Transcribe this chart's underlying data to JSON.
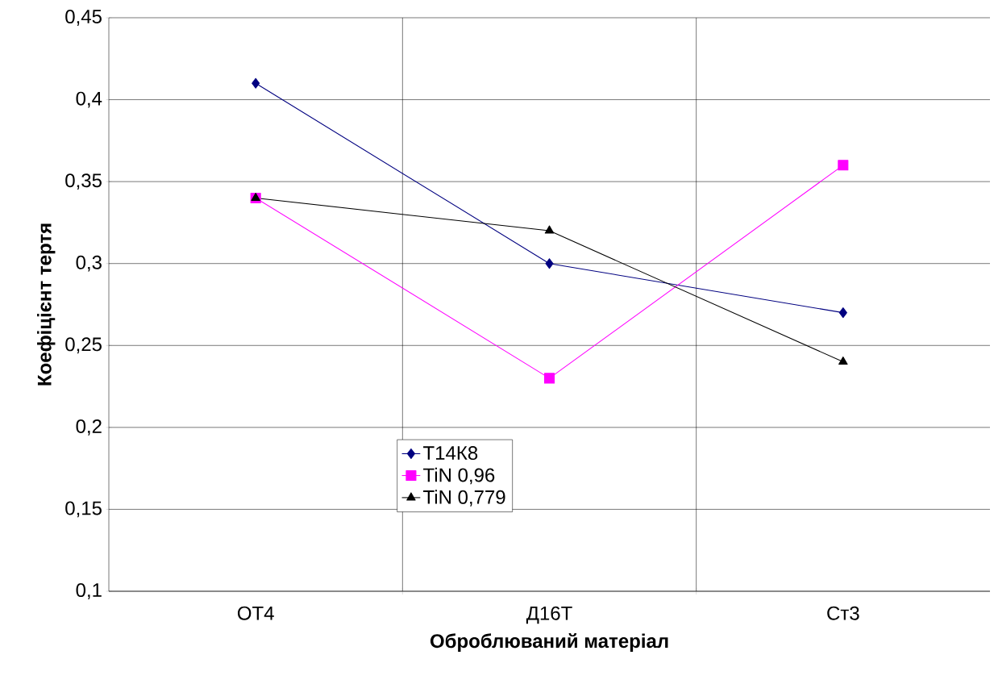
{
  "chart_data": {
    "type": "line",
    "xlabel": "Оброблюваний матеріал",
    "ylabel": "Коефіцієнт тертя",
    "categories": [
      "ОТ4",
      "Д16Т",
      "Ст3"
    ],
    "series": [
      {
        "name": "Т14К8",
        "color": "#000080",
        "marker": "diamond",
        "values": [
          0.41,
          0.3,
          0.27
        ]
      },
      {
        "name": "TiN 0,96",
        "color": "#ff00ff",
        "marker": "square",
        "values": [
          0.34,
          0.23,
          0.36
        ]
      },
      {
        "name": "TiN 0,779",
        "color": "#000000",
        "marker": "triangle",
        "values": [
          0.34,
          0.32,
          0.24
        ]
      }
    ],
    "ylim": [
      0.1,
      0.45
    ],
    "yticks": [
      {
        "value": 0.1,
        "label": "0,1"
      },
      {
        "value": 0.15,
        "label": "0,15"
      },
      {
        "value": 0.2,
        "label": "0,2"
      },
      {
        "value": 0.25,
        "label": "0,25"
      },
      {
        "value": 0.3,
        "label": "0,3"
      },
      {
        "value": 0.35,
        "label": "0,35"
      },
      {
        "value": 0.4,
        "label": "0,4"
      },
      {
        "value": 0.45,
        "label": "0,45"
      }
    ],
    "grid": true,
    "legend": "bottom",
    "line_style": "solid"
  }
}
